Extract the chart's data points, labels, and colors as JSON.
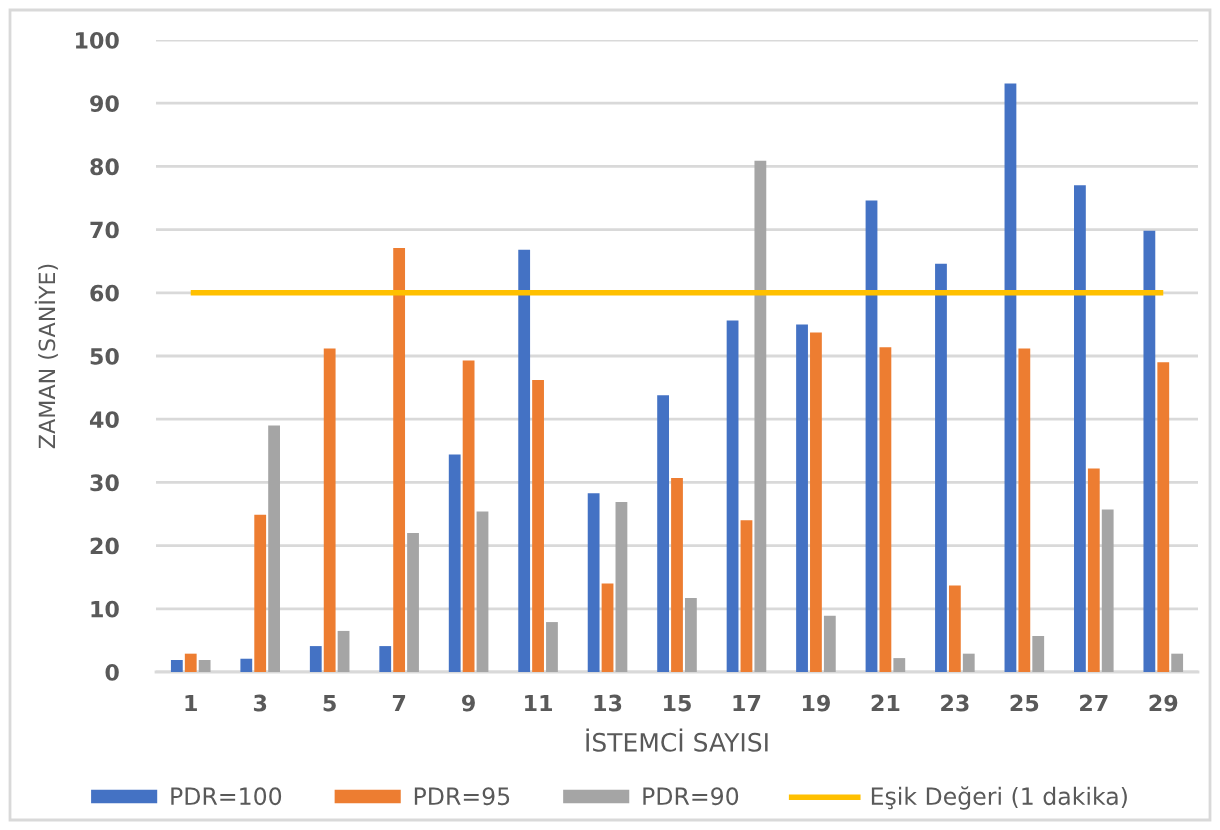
{
  "chart_data": {
    "type": "bar",
    "xlabel": "İSTEMCİ SAYISI",
    "ylabel": "ZAMAN (SANİYE)",
    "categories": [
      "1",
      "3",
      "5",
      "7",
      "9",
      "11",
      "13",
      "15",
      "17",
      "19",
      "21",
      "23",
      "25",
      "27",
      "29"
    ],
    "series": [
      {
        "name": "PDR=100",
        "color": "#4472c4",
        "values": [
          1.9,
          2.1,
          4.1,
          4.1,
          34.4,
          66.8,
          28.3,
          43.8,
          55.6,
          55.0,
          74.6,
          64.6,
          93.1,
          77.0,
          69.8
        ]
      },
      {
        "name": "PDR=95",
        "color": "#ed7d31",
        "values": [
          2.9,
          24.9,
          51.2,
          67.1,
          49.3,
          46.2,
          14.0,
          30.7,
          24.0,
          53.7,
          51.4,
          13.7,
          51.2,
          32.2,
          49.0
        ]
      },
      {
        "name": "PDR=90",
        "color": "#a5a5a5",
        "values": [
          1.9,
          39.0,
          6.5,
          22.0,
          25.4,
          7.9,
          26.9,
          11.7,
          80.9,
          8.9,
          2.2,
          2.9,
          5.7,
          25.7,
          2.9
        ]
      },
      {
        "name": "Eşik Değeri (1 dakika)",
        "type": "line",
        "color": "#ffc000",
        "values": [
          60,
          60,
          60,
          60,
          60,
          60,
          60,
          60,
          60,
          60,
          60,
          60,
          60,
          60,
          60
        ]
      }
    ],
    "ylim": [
      0,
      100
    ],
    "yticks": [
      0,
      10,
      20,
      30,
      40,
      50,
      60,
      70,
      80,
      90,
      100
    ],
    "grid": "y",
    "legend": "bottom"
  }
}
